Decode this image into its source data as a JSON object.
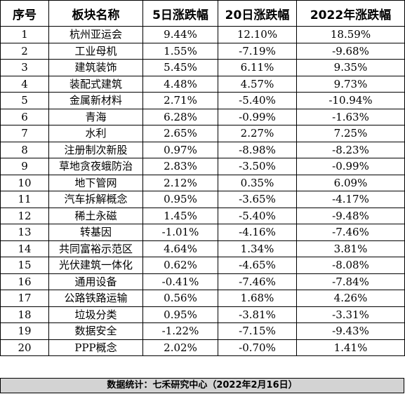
{
  "table": {
    "headers": [
      "序号",
      "板块名称",
      "5日涨跌幅",
      "20日涨跌幅",
      "2022年涨跌幅"
    ],
    "rows": [
      [
        "1",
        "杭州亚运会",
        "9.44%",
        "12.10%",
        "18.59%"
      ],
      [
        "2",
        "工业母机",
        "1.55%",
        "-7.19%",
        "-9.68%"
      ],
      [
        "3",
        "建筑装饰",
        "5.45%",
        "6.11%",
        "9.35%"
      ],
      [
        "4",
        "装配式建筑",
        "4.48%",
        "4.57%",
        "9.73%"
      ],
      [
        "5",
        "金属新材料",
        "2.71%",
        "-5.40%",
        "-10.94%"
      ],
      [
        "6",
        "青海",
        "6.28%",
        "-0.99%",
        "-1.63%"
      ],
      [
        "7",
        "水利",
        "2.65%",
        "2.27%",
        "7.25%"
      ],
      [
        "8",
        "注册制次新股",
        "0.97%",
        "-8.98%",
        "-8.23%"
      ],
      [
        "9",
        "草地贪夜蛾防治",
        "2.83%",
        "-3.50%",
        "-0.99%"
      ],
      [
        "10",
        "地下管网",
        "2.12%",
        "0.35%",
        "6.09%"
      ],
      [
        "11",
        "汽车拆解概念",
        "0.95%",
        "-3.65%",
        "-4.17%"
      ],
      [
        "12",
        "稀土永磁",
        "1.45%",
        "-5.40%",
        "-9.48%"
      ],
      [
        "13",
        "转基因",
        "-1.01%",
        "-4.16%",
        "-7.46%"
      ],
      [
        "14",
        "共同富裕示范区",
        "4.64%",
        "1.34%",
        "3.81%"
      ],
      [
        "15",
        "光伏建筑一体化",
        "0.62%",
        "-4.65%",
        "-8.08%"
      ],
      [
        "16",
        "通用设备",
        "-0.41%",
        "-7.46%",
        "-7.84%"
      ],
      [
        "17",
        "公路铁路运输",
        "0.56%",
        "1.68%",
        "4.26%"
      ],
      [
        "18",
        "垃圾分类",
        "0.95%",
        "-3.81%",
        "-3.31%"
      ],
      [
        "19",
        "数据安全",
        "-1.22%",
        "-7.15%",
        "-9.43%"
      ],
      [
        "20",
        "PPP概念",
        "2.02%",
        "-0.70%",
        "1.41%"
      ]
    ]
  },
  "footer": {
    "text": "数据统计：七禾研究中心（2022年2月16日）"
  }
}
